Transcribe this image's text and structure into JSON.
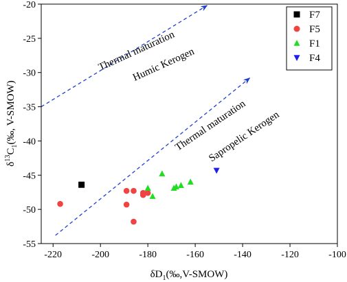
{
  "chart_data": {
    "type": "scatter",
    "title": "",
    "xlabel_parts": [
      "δD",
      "1",
      "(‰,V-SMOW)"
    ],
    "ylabel_parts": [
      "δ",
      "13",
      "C",
      "1",
      "(‰, V-SMOW)"
    ],
    "xlim": [
      -225,
      -100
    ],
    "ylim": [
      -55,
      -20
    ],
    "x_ticks": [
      -220,
      -200,
      -180,
      -160,
      -140,
      -120,
      -100
    ],
    "y_ticks": [
      -20,
      -25,
      -30,
      -35,
      -40,
      -45,
      -50,
      -55
    ],
    "grid": false,
    "legend_position": "top-right",
    "series": [
      {
        "name": "F7",
        "marker": "square",
        "color": "#000000",
        "points": [
          [
            -208,
            -46.4
          ]
        ]
      },
      {
        "name": "F5",
        "marker": "circle",
        "color": "#ef4444",
        "points": [
          [
            -217,
            -49.2
          ],
          [
            -189,
            -47.3
          ],
          [
            -189,
            -49.3
          ],
          [
            -186,
            -47.3
          ],
          [
            -186,
            -51.8
          ],
          [
            -182,
            -47.6
          ],
          [
            -182,
            -47.9
          ],
          [
            -180,
            -47.6
          ]
        ]
      },
      {
        "name": "F1",
        "marker": "triangle-up",
        "color": "#22dd22",
        "points": [
          [
            -180,
            -46.9
          ],
          [
            -178,
            -48.1
          ],
          [
            -174,
            -44.8
          ],
          [
            -169,
            -46.9
          ],
          [
            -168,
            -46.7
          ],
          [
            -166,
            -46.5
          ],
          [
            -162,
            -46.0
          ]
        ]
      },
      {
        "name": "F4",
        "marker": "triangle-down",
        "color": "#1f1fe8",
        "points": [
          [
            -151,
            -44.3
          ]
        ]
      }
    ],
    "trend_lines": [
      {
        "from": [
          -225,
          -35.0
        ],
        "to": [
          -155,
          -20.2
        ],
        "color": "#1f3fd0",
        "labels": [
          "Thermal  maturation",
          "Humic Kerogen"
        ]
      },
      {
        "from": [
          -219,
          -53.8
        ],
        "to": [
          -137,
          -30.8
        ],
        "color": "#1f3fd0",
        "labels": [
          "Thermal maturation",
          "Sapropelic Kerogen"
        ]
      }
    ]
  }
}
